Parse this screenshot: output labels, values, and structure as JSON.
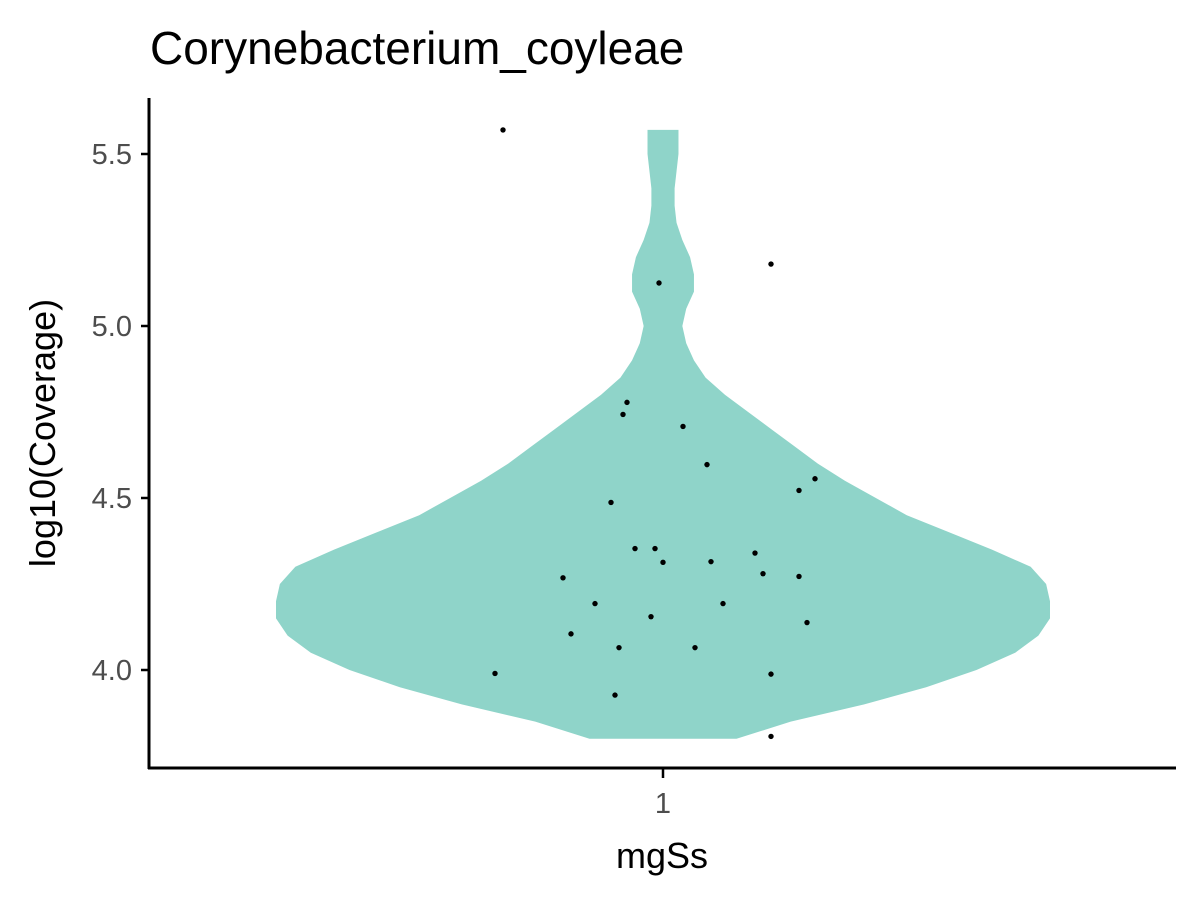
{
  "chart_data": {
    "type": "violin",
    "title": "Corynebacterium_coyleae",
    "xlabel": "mgSs",
    "ylabel": "log10(Coverage)",
    "categories": [
      "1"
    ],
    "y_ticks": [
      "4.0",
      "4.5",
      "5.0",
      "5.5"
    ],
    "ylim": [
      3.71,
      5.65
    ],
    "grid": false,
    "legend": "none",
    "colors": {
      "violin_fill": "#8fd4c9",
      "points": "#000000",
      "axis": "#000000"
    },
    "violin_density": [
      {
        "y": 3.8,
        "w": 0.19
      },
      {
        "y": 3.85,
        "w": 0.33
      },
      {
        "y": 3.9,
        "w": 0.52
      },
      {
        "y": 3.95,
        "w": 0.68
      },
      {
        "y": 4.0,
        "w": 0.81
      },
      {
        "y": 4.05,
        "w": 0.91
      },
      {
        "y": 4.1,
        "w": 0.97
      },
      {
        "y": 4.15,
        "w": 1.0
      },
      {
        "y": 4.2,
        "w": 1.0
      },
      {
        "y": 4.25,
        "w": 0.99
      },
      {
        "y": 4.3,
        "w": 0.95
      },
      {
        "y": 4.35,
        "w": 0.85
      },
      {
        "y": 4.4,
        "w": 0.74
      },
      {
        "y": 4.45,
        "w": 0.63
      },
      {
        "y": 4.5,
        "w": 0.55
      },
      {
        "y": 4.55,
        "w": 0.47
      },
      {
        "y": 4.6,
        "w": 0.4
      },
      {
        "y": 4.65,
        "w": 0.34
      },
      {
        "y": 4.7,
        "w": 0.28
      },
      {
        "y": 4.75,
        "w": 0.22
      },
      {
        "y": 4.8,
        "w": 0.16
      },
      {
        "y": 4.85,
        "w": 0.11
      },
      {
        "y": 4.9,
        "w": 0.08
      },
      {
        "y": 4.95,
        "w": 0.06
      },
      {
        "y": 5.0,
        "w": 0.05
      },
      {
        "y": 5.05,
        "w": 0.06
      },
      {
        "y": 5.1,
        "w": 0.08
      },
      {
        "y": 5.15,
        "w": 0.08
      },
      {
        "y": 5.2,
        "w": 0.07
      },
      {
        "y": 5.25,
        "w": 0.05
      },
      {
        "y": 5.3,
        "w": 0.035
      },
      {
        "y": 5.35,
        "w": 0.03
      },
      {
        "y": 5.4,
        "w": 0.03
      },
      {
        "y": 5.45,
        "w": 0.035
      },
      {
        "y": 5.5,
        "w": 0.04
      },
      {
        "y": 5.55,
        "w": 0.04
      },
      {
        "y": 5.57,
        "w": 0.04
      }
    ],
    "points": [
      {
        "jitter": -0.4,
        "y": 5.57
      },
      {
        "jitter": 0.27,
        "y": 5.18
      },
      {
        "jitter": -0.01,
        "y": 5.125
      },
      {
        "jitter": -0.09,
        "y": 4.778
      },
      {
        "jitter": -0.1,
        "y": 4.743
      },
      {
        "jitter": 0.05,
        "y": 4.708
      },
      {
        "jitter": 0.11,
        "y": 4.597
      },
      {
        "jitter": 0.38,
        "y": 4.556
      },
      {
        "jitter": 0.34,
        "y": 4.522
      },
      {
        "jitter": -0.13,
        "y": 4.487
      },
      {
        "jitter": -0.07,
        "y": 4.353
      },
      {
        "jitter": -0.02,
        "y": 4.353
      },
      {
        "jitter": 0.23,
        "y": 4.34
      },
      {
        "jitter": 0.0,
        "y": 4.313
      },
      {
        "jitter": 0.12,
        "y": 4.315
      },
      {
        "jitter": 0.25,
        "y": 4.28
      },
      {
        "jitter": 0.34,
        "y": 4.272
      },
      {
        "jitter": -0.25,
        "y": 4.268
      },
      {
        "jitter": -0.17,
        "y": 4.193
      },
      {
        "jitter": 0.15,
        "y": 4.193
      },
      {
        "jitter": -0.03,
        "y": 4.155
      },
      {
        "jitter": 0.36,
        "y": 4.138
      },
      {
        "jitter": -0.23,
        "y": 4.105
      },
      {
        "jitter": -0.11,
        "y": 4.065
      },
      {
        "jitter": 0.08,
        "y": 4.065
      },
      {
        "jitter": -0.42,
        "y": 3.99
      },
      {
        "jitter": 0.27,
        "y": 3.988
      },
      {
        "jitter": -0.12,
        "y": 3.927
      },
      {
        "jitter": 0.27,
        "y": 3.807
      }
    ]
  }
}
